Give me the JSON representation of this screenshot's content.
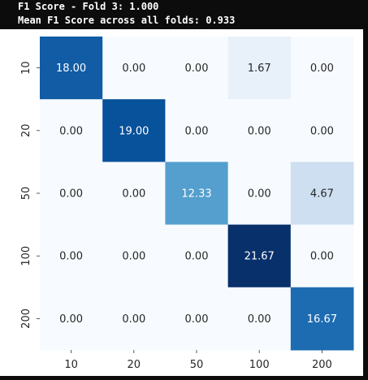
{
  "console": {
    "line1": "F1 Score - Fold 3: 1.000",
    "line2": "Mean F1 Score across all folds: 0.933"
  },
  "chart_data": {
    "type": "heatmap",
    "x_labels": [
      "10",
      "20",
      "50",
      "100",
      "200"
    ],
    "y_labels": [
      "10",
      "20",
      "50",
      "100",
      "200"
    ],
    "values": [
      [
        18.0,
        0.0,
        0.0,
        1.67,
        0.0
      ],
      [
        0.0,
        19.0,
        0.0,
        0.0,
        0.0
      ],
      [
        0.0,
        0.0,
        12.33,
        0.0,
        4.67
      ],
      [
        0.0,
        0.0,
        0.0,
        21.67,
        0.0
      ],
      [
        0.0,
        0.0,
        0.0,
        0.0,
        16.67
      ]
    ],
    "value_format": "2 decimals",
    "colormap": "Blues",
    "colorbar": false,
    "title": "",
    "xlabel": "",
    "ylabel": ""
  }
}
